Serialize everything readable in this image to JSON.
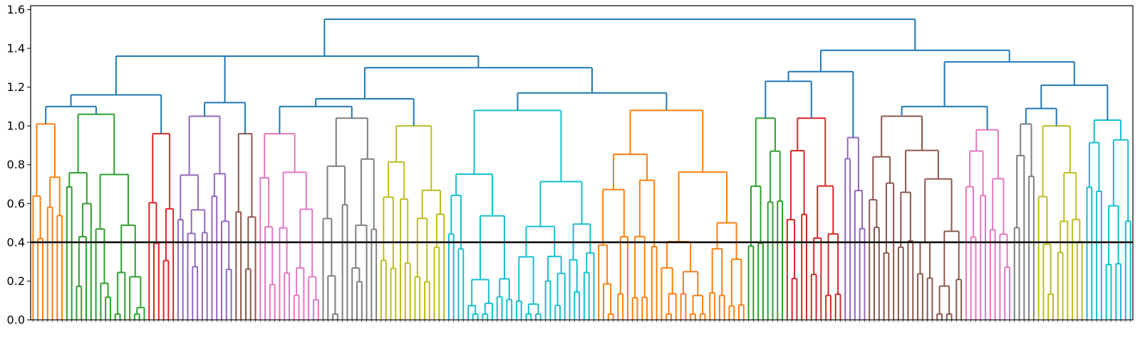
{
  "chart_data": {
    "type": "dendrogram",
    "title": "",
    "xlabel": "",
    "ylabel": "",
    "ylim": [
      0,
      1.62
    ],
    "y_ticks": [
      "0.0",
      "0.2",
      "0.4",
      "0.6",
      "0.8",
      "1.0",
      "1.2",
      "1.4",
      "1.6"
    ],
    "y_tick_values": [
      0.0,
      0.2,
      0.4,
      0.6,
      0.8,
      1.0,
      1.2,
      1.4,
      1.6
    ],
    "cut_line": 0.4,
    "grid": false,
    "above_threshold_color": "#1f77b4",
    "clusters": [
      {
        "color": "#ff7f0e",
        "leaves": 7,
        "height": 1.01
      },
      {
        "color": "#2ca02c",
        "leaves": 17,
        "height": 1.06
      },
      {
        "color": "#d62728",
        "leaves": 6,
        "height": 0.96
      },
      {
        "color": "#9467bd",
        "leaves": 12,
        "height": 1.05
      },
      {
        "color": "#8c564b",
        "leaves": 5,
        "height": 0.96
      },
      {
        "color": "#e377c2",
        "leaves": 13,
        "height": 0.96
      },
      {
        "color": "#7f7f7f",
        "leaves": 12,
        "height": 1.04
      },
      {
        "color": "#bcbd22",
        "leaves": 14,
        "height": 1.0
      },
      {
        "color": "#17becf",
        "leaves": 31,
        "height": 1.08
      },
      {
        "color": "#ff7f0e",
        "leaves": 31,
        "height": 1.08
      },
      {
        "color": "#2ca02c",
        "leaves": 8,
        "height": 1.04
      },
      {
        "color": "#d62728",
        "leaves": 12,
        "height": 1.04
      },
      {
        "color": "#9467bd",
        "leaves": 5,
        "height": 0.94
      },
      {
        "color": "#8c564b",
        "leaves": 20,
        "height": 1.05
      },
      {
        "color": "#e377c2",
        "leaves": 10,
        "height": 0.98
      },
      {
        "color": "#7f7f7f",
        "leaves": 5,
        "height": 1.01
      },
      {
        "color": "#bcbd22",
        "leaves": 10,
        "height": 1.0
      },
      {
        "color": "#17becf",
        "leaves": 10,
        "height": 1.03
      }
    ],
    "upper_merges": [
      {
        "left": 0,
        "right": 1,
        "height": 1.1
      },
      {
        "left": 0,
        "right": 2,
        "height": 1.16
      },
      {
        "left": 0,
        "right": 3,
        "height": 1.12
      },
      {
        "left": 0,
        "right": 1,
        "height": 1.36
      },
      {
        "left": 0,
        "right": 4,
        "height": 1.14
      },
      {
        "left": 0,
        "right": 5,
        "height": 1.1
      },
      {
        "left": 0,
        "right": 6,
        "height": 1.1
      },
      {
        "left": 0,
        "right": 7,
        "height": 1.17
      },
      {
        "left": 0,
        "right": 8,
        "height": 1.3
      },
      {
        "left": 0,
        "right": 9,
        "height": 1.28
      },
      {
        "left": 0,
        "right": 10,
        "height": 1.23
      },
      {
        "left": 0,
        "right": 11,
        "height": 1.1
      },
      {
        "left": 0,
        "right": 12,
        "height": 1.09
      },
      {
        "left": 0,
        "right": 13,
        "height": 1.15
      },
      {
        "left": 0,
        "right": 14,
        "height": 1.21
      },
      {
        "left": 0,
        "right": 15,
        "height": 1.33
      },
      {
        "left": 0,
        "right": 16,
        "height": 1.39
      },
      {
        "left": 0,
        "right": 17,
        "height": 1.55
      }
    ]
  }
}
